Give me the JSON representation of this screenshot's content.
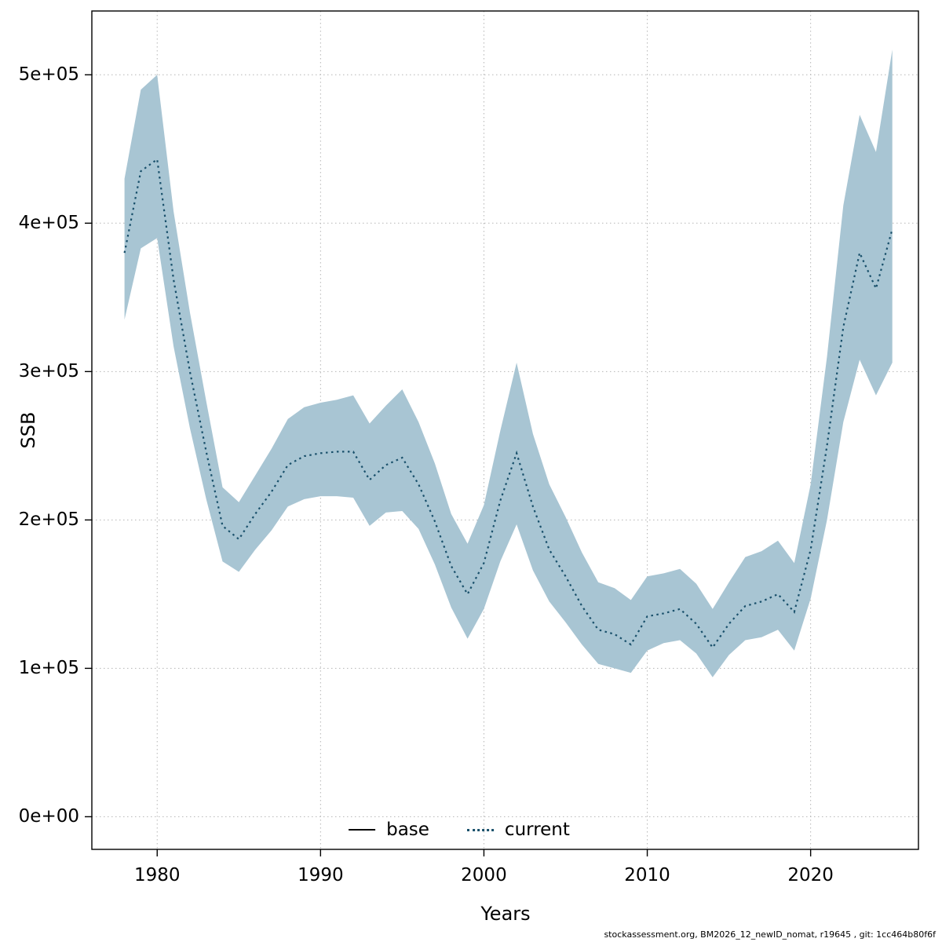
{
  "chart_data": {
    "type": "area",
    "title": "",
    "xlabel": "Years",
    "ylabel": "SSB",
    "grid": "dotted",
    "xlim": [
      1976.0,
      2026.6
    ],
    "ylim": [
      -22000,
      543000
    ],
    "x_ticks": [
      1980,
      1990,
      2000,
      2010,
      2020
    ],
    "y_ticks": [
      {
        "value": 0,
        "label": "0e+00"
      },
      {
        "value": 100000,
        "label": "1e+05"
      },
      {
        "value": 200000,
        "label": "2e+05"
      },
      {
        "value": 300000,
        "label": "3e+05"
      },
      {
        "value": 400000,
        "label": "4e+05"
      },
      {
        "value": 500000,
        "label": "5e+05"
      }
    ],
    "band_color": "#a8c5d3",
    "line_color": "#19506b",
    "legend": {
      "position": "bottom-center-inside",
      "entries": [
        {
          "label": "base",
          "style": "solid",
          "color": "#000000"
        },
        {
          "label": "current",
          "style": "dotted",
          "color": "#19506b"
        }
      ]
    },
    "x": [
      1978,
      1979,
      1980,
      1981,
      1982,
      1983,
      1984,
      1985,
      1986,
      1987,
      1988,
      1989,
      1990,
      1991,
      1992,
      1993,
      1994,
      1995,
      1996,
      1997,
      1998,
      1999,
      2000,
      2001,
      2002,
      2003,
      2004,
      2005,
      2006,
      2007,
      2008,
      2009,
      2010,
      2011,
      2012,
      2013,
      2014,
      2015,
      2016,
      2017,
      2018,
      2019,
      2020,
      2021,
      2022,
      2023,
      2024,
      2025
    ],
    "series": [
      {
        "name": "current",
        "role": "line",
        "values": [
          380000,
          435000,
          443000,
          362000,
          300000,
          246000,
          196000,
          187000,
          204000,
          219000,
          237000,
          243000,
          245000,
          246000,
          246000,
          227000,
          237000,
          242000,
          224000,
          199000,
          169000,
          150000,
          171000,
          213000,
          245000,
          209000,
          180000,
          162000,
          142000,
          126000,
          123000,
          116000,
          135000,
          137000,
          140000,
          130000,
          114000,
          130000,
          142000,
          145000,
          150000,
          138000,
          180000,
          250000,
          330000,
          380000,
          356000,
          396000
        ]
      },
      {
        "name": "current_upper",
        "role": "band-upper",
        "values": [
          430000,
          490000,
          500000,
          408000,
          340000,
          280000,
          222000,
          212000,
          230000,
          248000,
          268000,
          276000,
          279000,
          281000,
          284000,
          265000,
          277000,
          288000,
          266000,
          238000,
          204000,
          184000,
          210000,
          260000,
          306000,
          258000,
          224000,
          202000,
          178000,
          158000,
          154000,
          146000,
          162000,
          164000,
          167000,
          157000,
          140000,
          158000,
          175000,
          179000,
          186000,
          171000,
          224000,
          310000,
          412000,
          473000,
          448000,
          517000
        ]
      },
      {
        "name": "current_lower",
        "role": "band-lower",
        "values": [
          335000,
          383000,
          390000,
          317000,
          262000,
          214000,
          172000,
          165000,
          180000,
          193000,
          209000,
          214000,
          216000,
          216000,
          215000,
          196000,
          205000,
          206000,
          194000,
          170000,
          141000,
          120000,
          140000,
          172000,
          197000,
          166000,
          145000,
          131000,
          116000,
          103000,
          100000,
          97000,
          112000,
          117000,
          119000,
          110000,
          94000,
          109000,
          119000,
          121000,
          126000,
          112000,
          147000,
          200000,
          266000,
          308000,
          284000,
          306000
        ]
      }
    ]
  },
  "footer": {
    "text": "stockassessment.org, BM2026_12_newID_nomat, r19645 , git: 1cc464b80f6f"
  }
}
